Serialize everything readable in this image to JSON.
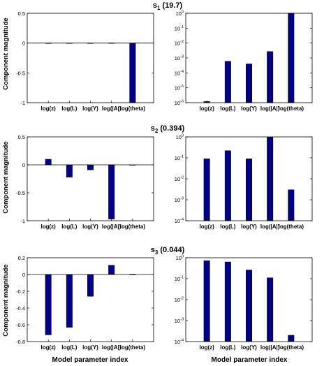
{
  "figure": {
    "ylabel": "Component magnitude",
    "xlabel": "Model parameter index"
  },
  "chart_data": [
    {
      "id": "s1-linear",
      "type": "bar",
      "title_main": "s",
      "title_sub": "1",
      "title_rest": " (19.7)",
      "categories": [
        "log(z)",
        "log(L)",
        "log(Y)",
        "log(|A|)",
        "log(theta)"
      ],
      "values": [
        0.0,
        0.0,
        0.0,
        0.002,
        -1.0
      ],
      "ylim": [
        -1,
        0.5
      ],
      "yticks": [
        -1,
        -0.5,
        0,
        0.5
      ],
      "ytick_labels": [
        "-1",
        "-0.5",
        "0",
        "0.5"
      ],
      "scale": "linear",
      "color": "#00008b"
    },
    {
      "id": "s1-log",
      "type": "bar",
      "categories": [
        "log(z)",
        "log(L)",
        "log(Y)",
        "log(|A|)",
        "log(theta)"
      ],
      "values": [
        1.2e-06,
        0.0006,
        0.0004,
        0.0027,
        1.0
      ],
      "ylim": [
        1e-06,
        1
      ],
      "yticks": [
        1e-06,
        1e-05,
        0.0001,
        0.001,
        0.01,
        0.1,
        1
      ],
      "ytick_labels": [
        [
          "10",
          "-6"
        ],
        [
          "10",
          "-5"
        ],
        [
          "10",
          "-4"
        ],
        [
          "10",
          "-3"
        ],
        [
          "10",
          "-2"
        ],
        [
          "10",
          "-1"
        ],
        [
          "10",
          "0"
        ]
      ],
      "scale": "log",
      "color": "#00008b"
    },
    {
      "id": "s2-linear",
      "type": "bar",
      "title_main": "s",
      "title_sub": "2",
      "title_rest": " (0.394)",
      "categories": [
        "log(z)",
        "log(L)",
        "log(Y)",
        "log(|A|)",
        "log(theta)"
      ],
      "values": [
        0.1,
        -0.22,
        -0.09,
        -0.97,
        0.0
      ],
      "ylim": [
        -1,
        0.5
      ],
      "yticks": [
        -1,
        -0.5,
        0,
        0.5
      ],
      "ytick_labels": [
        "-1",
        "-0.5",
        "0",
        "0.5"
      ],
      "scale": "linear",
      "color": "#00008b"
    },
    {
      "id": "s2-log",
      "type": "bar",
      "categories": [
        "log(z)",
        "log(L)",
        "log(Y)",
        "log(|A|)",
        "log(theta)"
      ],
      "values": [
        0.09,
        0.22,
        0.09,
        0.97,
        0.003
      ],
      "ylim": [
        0.0001,
        1
      ],
      "yticks": [
        0.0001,
        0.001,
        0.01,
        0.1,
        1
      ],
      "ytick_labels": [
        [
          "10",
          "-4"
        ],
        [
          "10",
          "-3"
        ],
        [
          "10",
          "-2"
        ],
        [
          "10",
          "-1"
        ],
        [
          "10",
          "0"
        ]
      ],
      "scale": "log",
      "color": "#00008b"
    },
    {
      "id": "s3-linear",
      "type": "bar",
      "title_main": "s",
      "title_sub": "3",
      "title_rest": " (0.044)",
      "categories": [
        "log(z)",
        "log(L)",
        "log(Y)",
        "log(|A|)",
        "log(theta)"
      ],
      "values": [
        -0.72,
        -0.63,
        -0.26,
        0.11,
        0.0
      ],
      "ylim": [
        -0.8,
        0.2
      ],
      "yticks": [
        -0.8,
        -0.6,
        -0.4,
        -0.2,
        0,
        0.2
      ],
      "ytick_labels": [
        "-0.8",
        "-0.6",
        "-0.4",
        "-0.2",
        "0",
        "0.2"
      ],
      "scale": "linear",
      "color": "#00008b"
    },
    {
      "id": "s3-log",
      "type": "bar",
      "categories": [
        "log(z)",
        "log(L)",
        "log(Y)",
        "log(|A|)",
        "log(theta)"
      ],
      "values": [
        0.72,
        0.63,
        0.26,
        0.11,
        0.0002
      ],
      "ylim": [
        0.0001,
        1
      ],
      "yticks": [
        0.0001,
        0.001,
        0.01,
        0.1,
        1
      ],
      "ytick_labels": [
        [
          "10",
          "-4"
        ],
        [
          "10",
          "-3"
        ],
        [
          "10",
          "-2"
        ],
        [
          "10",
          "-1"
        ],
        [
          "10",
          "0"
        ]
      ],
      "scale": "log",
      "color": "#00008b"
    }
  ]
}
